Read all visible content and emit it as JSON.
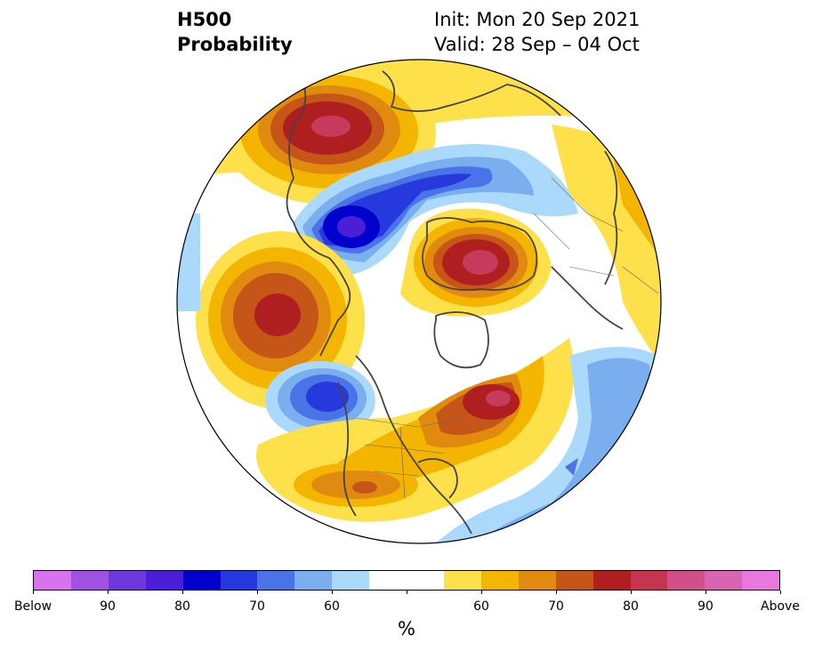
{
  "header": {
    "left_line1": "H500",
    "left_line2": "Probability",
    "right_line1": "Init: Mon 20 Sep 2021",
    "right_line2": "Valid: 28 Sep – 04 Oct"
  },
  "legend": {
    "unit": "%",
    "colors": [
      "#d873ee",
      "#a052e3",
      "#6f38dd",
      "#4b1fd6",
      "#0000cc",
      "#2639dd",
      "#4b73e8",
      "#7aaeef",
      "#aad9fb",
      "#ffffff",
      "#ffffff",
      "#fde04a",
      "#f4b500",
      "#e08a10",
      "#c65618",
      "#b01f1f",
      "#c63550",
      "#d2508a",
      "#d865b2",
      "#e878de"
    ],
    "tick_labels": [
      "Below",
      "90",
      "80",
      "70",
      "60",
      "",
      "60",
      "70",
      "80",
      "90",
      "Above"
    ]
  },
  "map": {
    "projection": "north-polar-stereographic",
    "colors": {
      "above_light": "#fde04a",
      "above_mid": "#f4b500",
      "above_orange": "#e08a10",
      "above_dark_orange": "#c65618",
      "above_red": "#b01f1f",
      "above_max": "#c63a5c",
      "below_light": "#aad9fb",
      "below_mid": "#7aaeef",
      "below_blue": "#4b73e8",
      "below_dark": "#2639dd",
      "below_max": "#0000cc",
      "below_purple": "#4b1fd6"
    }
  }
}
